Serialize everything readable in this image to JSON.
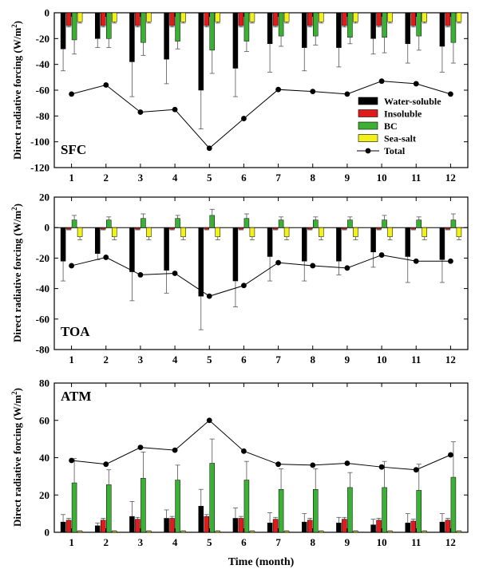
{
  "chart_data": [
    {
      "type": "bar",
      "title": "SFC",
      "ylabel": "Direct radiative forcing (W/m2)",
      "ylim": [
        -120,
        0
      ],
      "yticks": [
        -120,
        -100,
        -80,
        -60,
        -40,
        -20,
        0
      ],
      "categories": [
        "1",
        "2",
        "3",
        "4",
        "5",
        "6",
        "7",
        "8",
        "9",
        "10",
        "11",
        "12"
      ],
      "series": [
        {
          "name": "Water-soluble",
          "color": "#000000",
          "values": [
            -28,
            -20,
            -38,
            -36,
            -60,
            -43,
            -24,
            -27,
            -27,
            -20,
            -24,
            -26
          ],
          "errors": [
            17,
            7,
            27,
            19,
            30,
            22,
            22,
            18,
            15,
            12,
            15,
            20
          ]
        },
        {
          "name": "Insoluble",
          "color": "#e01b1b",
          "values": [
            -10,
            -10,
            -10,
            -10,
            -10,
            -10,
            -10,
            -10,
            -10,
            -10,
            -10,
            -10
          ],
          "errors": [
            1,
            1,
            1,
            1,
            1,
            1,
            1,
            1,
            1,
            1,
            1,
            1
          ]
        },
        {
          "name": "BC",
          "color": "#3cb034",
          "values": [
            -21,
            -20,
            -23,
            -22,
            -29,
            -22,
            -18,
            -18,
            -19,
            -19,
            -18,
            -23
          ],
          "errors": [
            11,
            7,
            10,
            6,
            18,
            8,
            8,
            7,
            5,
            12,
            11,
            16
          ]
        },
        {
          "name": "Sea-salt",
          "color": "#f2f21a",
          "values": [
            -7,
            -7,
            -7,
            -7,
            -7,
            -7,
            -7,
            -7,
            -7,
            -7,
            -7,
            -7
          ],
          "errors": [
            1,
            1,
            1,
            1,
            1,
            1,
            1,
            1,
            1,
            1,
            1,
            1
          ]
        }
      ],
      "line": {
        "name": "Total",
        "values": [
          -63,
          -56,
          -77,
          -75,
          -105,
          -82,
          -59.5,
          -61,
          -63,
          -53,
          -55,
          -63
        ]
      }
    },
    {
      "type": "bar",
      "title": "TOA",
      "ylabel": "Direct radiative forcing (W/m2)",
      "ylim": [
        -80,
        20
      ],
      "yticks": [
        -80,
        -60,
        -40,
        -20,
        0,
        20
      ],
      "categories": [
        "1",
        "2",
        "3",
        "4",
        "5",
        "6",
        "7",
        "8",
        "9",
        "10",
        "11",
        "12"
      ],
      "series": [
        {
          "name": "Water-soluble",
          "color": "#000000",
          "values": [
            -22,
            -17,
            -29,
            -28,
            -45,
            -35,
            -19,
            -22,
            -22,
            -16,
            -19,
            -21
          ],
          "errors": [
            13,
            4,
            19,
            15,
            22,
            17,
            16,
            13,
            9,
            10,
            17,
            15
          ]
        },
        {
          "name": "Insoluble",
          "color": "#e01b1b",
          "values": [
            -1,
            -1,
            -1,
            -1,
            -1,
            -1,
            -1,
            -1,
            -1,
            -1,
            -1,
            -1
          ],
          "errors": [
            0.5,
            0.5,
            0.5,
            0.5,
            0.5,
            0.5,
            0.5,
            0.5,
            0.5,
            0.5,
            0.5,
            0.5
          ]
        },
        {
          "name": "BC",
          "color": "#3cb034",
          "values": [
            5,
            5,
            6,
            6,
            8,
            6,
            5,
            5,
            5,
            5,
            5,
            5
          ],
          "errors": [
            3,
            2,
            3,
            2,
            4,
            3,
            2,
            2,
            2,
            3,
            2,
            4
          ]
        },
        {
          "name": "Sea-salt",
          "color": "#f2f21a",
          "values": [
            -6,
            -6,
            -6,
            -6,
            -6,
            -6,
            -6,
            -6,
            -6,
            -6,
            -6,
            -6
          ],
          "errors": [
            2,
            2,
            2,
            2,
            2,
            2,
            2,
            2,
            2,
            2,
            2,
            2
          ]
        }
      ],
      "line": {
        "name": "Total",
        "values": [
          -25,
          -19.5,
          -31,
          -30,
          -45,
          -38,
          -23,
          -25,
          -26.5,
          -18,
          -22,
          -22
        ]
      }
    },
    {
      "type": "bar",
      "title": "ATM",
      "ylabel": "Direct radiative forcing (W/m2)",
      "xlabel": "Time (month)",
      "ylim": [
        0,
        80
      ],
      "yticks": [
        0,
        20,
        40,
        60,
        80
      ],
      "categories": [
        "1",
        "2",
        "3",
        "4",
        "5",
        "6",
        "7",
        "8",
        "9",
        "10",
        "11",
        "12"
      ],
      "series": [
        {
          "name": "Water-soluble",
          "color": "#000000",
          "values": [
            5.5,
            3.5,
            8.5,
            7.5,
            14,
            7.5,
            5,
            5.5,
            5,
            4,
            5,
            5.5
          ],
          "errors": [
            4,
            1.5,
            8,
            4.5,
            9,
            5.5,
            5.5,
            4.5,
            3,
            3,
            5,
            4.5
          ]
        },
        {
          "name": "Insoluble",
          "color": "#e01b1b",
          "values": [
            6.5,
            6.5,
            7,
            7.5,
            8.5,
            7.5,
            7,
            6.5,
            7,
            6.5,
            6,
            6.5
          ],
          "errors": [
            1,
            1,
            1,
            1,
            1,
            1,
            1,
            1,
            1,
            1,
            1,
            1
          ]
        },
        {
          "name": "BC",
          "color": "#3cb034",
          "values": [
            26.5,
            25.5,
            29,
            28,
            37,
            28,
            23,
            23,
            24,
            24,
            22.5,
            29.5
          ],
          "errors": [
            13,
            8,
            14,
            8,
            13,
            10,
            11,
            11,
            8,
            14,
            14,
            19
          ]
        },
        {
          "name": "Sea-salt",
          "color": "#f2f21a",
          "values": [
            0.6,
            0.6,
            0.6,
            0.6,
            0.6,
            0.6,
            0.6,
            0.6,
            0.6,
            0.6,
            0.6,
            0.6
          ],
          "errors": [
            0.2,
            0.2,
            0.2,
            0.2,
            0.2,
            0.2,
            0.2,
            0.2,
            0.2,
            0.2,
            0.2,
            0.2
          ]
        }
      ],
      "line": {
        "name": "Total",
        "values": [
          38.5,
          36.5,
          45.5,
          44,
          60,
          43.5,
          36.5,
          36,
          37,
          35,
          33.5,
          41.5
        ]
      }
    }
  ],
  "legend": [
    {
      "label": "Water-soluble",
      "color": "#000000",
      "kind": "bar"
    },
    {
      "label": "Insoluble",
      "color": "#e01b1b",
      "kind": "bar"
    },
    {
      "label": "BC",
      "color": "#3cb034",
      "kind": "bar"
    },
    {
      "label": "Sea-salt",
      "color": "#f2f21a",
      "kind": "bar"
    },
    {
      "label": "Total",
      "color": "#000000",
      "kind": "line"
    }
  ]
}
